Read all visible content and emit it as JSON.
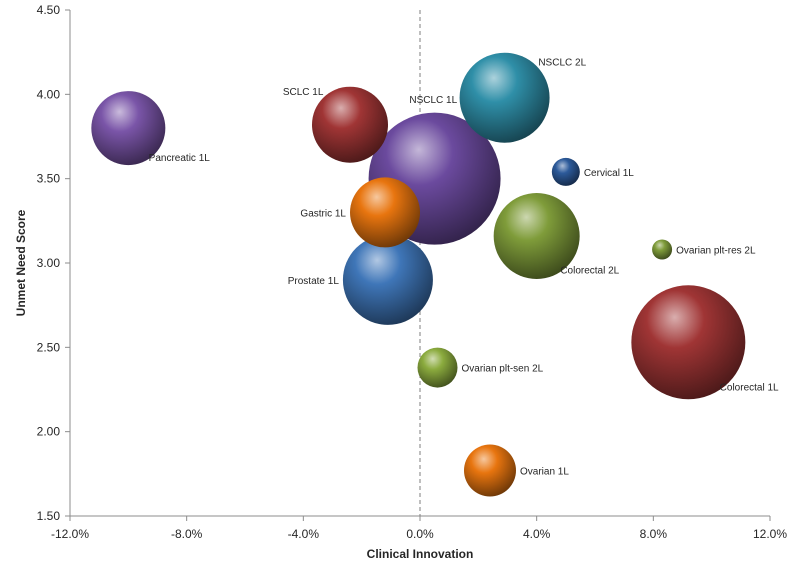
{
  "chart_data": {
    "type": "bubble",
    "xlabel": "Clinical Innovation",
    "ylabel": "Unmet Need Score",
    "xlim": [
      -0.12,
      0.12
    ],
    "ylim": [
      1.5,
      4.5
    ],
    "x_ticks": [
      -0.12,
      -0.08,
      -0.04,
      0.0,
      0.04,
      0.08,
      0.12
    ],
    "x_tick_labels": [
      "-12.0%",
      "-8.0%",
      "-4.0%",
      "0.0%",
      "4.0%",
      "8.0%",
      "12.0%"
    ],
    "y_ticks": [
      1.5,
      2.0,
      2.5,
      3.0,
      3.5,
      4.0,
      4.5
    ],
    "y_tick_labels": [
      "1.50",
      "2.00",
      "2.50",
      "3.00",
      "3.50",
      "4.00",
      "4.50"
    ],
    "reference_line_x": 0.0,
    "grid": false,
    "points": [
      {
        "label": "Pancreatic 1L",
        "x": -0.1,
        "y": 3.8,
        "size": 37,
        "color": "#7a55a8",
        "label_pos": "below-right"
      },
      {
        "label": "SCLC 1L",
        "x": -0.024,
        "y": 3.82,
        "size": 38,
        "color": "#a03535",
        "label_pos": "above-left"
      },
      {
        "label": "NSCLC 1L",
        "x": 0.005,
        "y": 3.5,
        "size": 66,
        "color": "#6b4a9e",
        "label_pos": "above-center"
      },
      {
        "label": "NSCLC 2L",
        "x": 0.029,
        "y": 3.98,
        "size": 45,
        "color": "#2f8fa8",
        "label_pos": "above-right"
      },
      {
        "label": "Cervical 1L",
        "x": 0.05,
        "y": 3.54,
        "size": 14,
        "color": "#2c5a9a",
        "label_pos": "right"
      },
      {
        "label": "Gastric 1L",
        "x": -0.012,
        "y": 3.3,
        "size": 35,
        "color": "#e8750f",
        "label_pos": "left"
      },
      {
        "label": "Colorectal 2L",
        "x": 0.04,
        "y": 3.16,
        "size": 43,
        "color": "#7f9c3a",
        "label_pos": "below-right"
      },
      {
        "label": "Ovarian plt-res 2L",
        "x": 0.083,
        "y": 3.08,
        "size": 10,
        "color": "#7f9c3a",
        "label_pos": "right"
      },
      {
        "label": "Prostate 1L",
        "x": -0.011,
        "y": 2.9,
        "size": 45,
        "color": "#3f76b8",
        "label_pos": "left"
      },
      {
        "label": "Colorectal 1L",
        "x": 0.092,
        "y": 2.53,
        "size": 57,
        "color": "#a03535",
        "label_pos": "below-right"
      },
      {
        "label": "Ovarian plt-sen 2L",
        "x": 0.006,
        "y": 2.38,
        "size": 20,
        "color": "#8bab3e",
        "label_pos": "right"
      },
      {
        "label": "Ovarian 1L",
        "x": 0.024,
        "y": 1.77,
        "size": 26,
        "color": "#e8750f",
        "label_pos": "right"
      }
    ]
  }
}
